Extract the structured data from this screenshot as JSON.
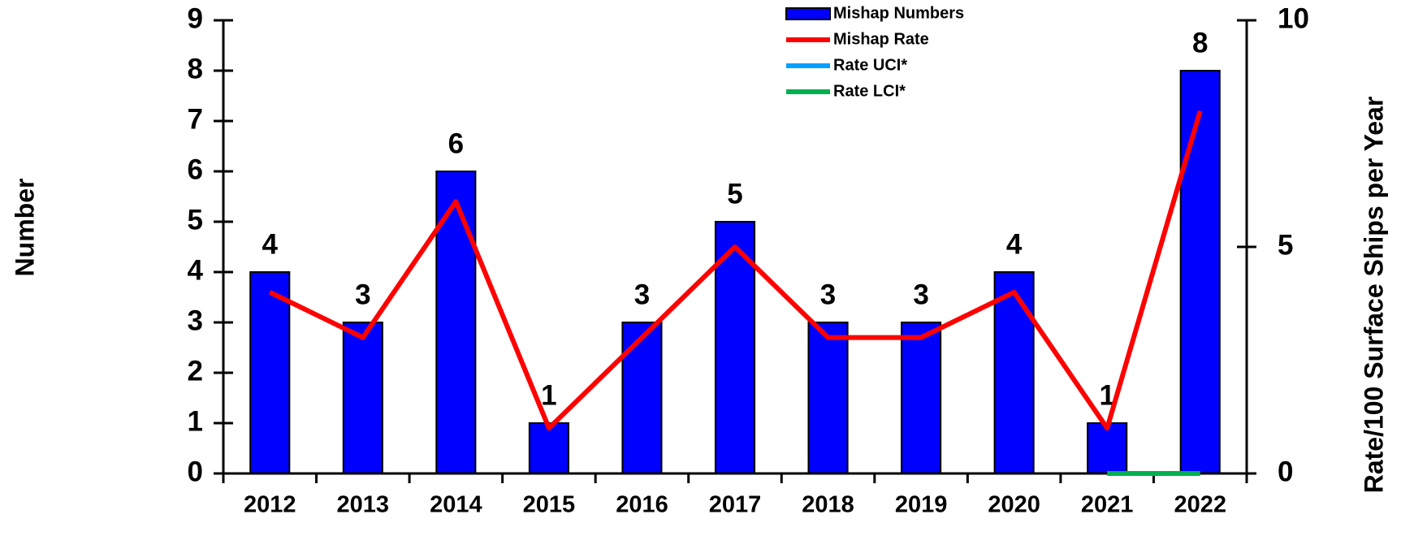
{
  "chart_data": {
    "type": "bar_line",
    "ylabel": "Number",
    "y2label": "Rate/100 Surface Ships per Year",
    "categories": [
      "2012",
      "2013",
      "2014",
      "2015",
      "2016",
      "2017",
      "2018",
      "2019",
      "2020",
      "2021",
      "2022"
    ],
    "series": [
      {
        "name": "Mishap Numbers",
        "type": "bar",
        "color": "#0000ff",
        "values": [
          4,
          3,
          6,
          1,
          3,
          5,
          3,
          3,
          4,
          1,
          8
        ]
      },
      {
        "name": "Mishap Rate",
        "type": "line",
        "axis": "y2",
        "color": "#ff0000",
        "values": [
          4.0,
          3.0,
          6.0,
          1.0,
          3.0,
          5.0,
          3.0,
          3.0,
          4.0,
          1.0,
          8.0
        ]
      },
      {
        "name": "Rate UCI*",
        "type": "line",
        "axis": "y2",
        "color": "#00a0ff",
        "values": [
          null,
          null,
          null,
          null,
          null,
          null,
          null,
          null,
          null,
          null,
          null
        ]
      },
      {
        "name": "Rate LCI*",
        "type": "line",
        "axis": "y2",
        "color": "#00b050",
        "values": [
          null,
          null,
          null,
          null,
          null,
          null,
          null,
          null,
          null,
          0,
          0
        ]
      }
    ],
    "ylim": [
      0,
      9
    ],
    "yticks": [
      0,
      1,
      2,
      3,
      4,
      5,
      6,
      7,
      8,
      9
    ],
    "y2lim": [
      0,
      10
    ],
    "y2ticks": [
      0,
      5,
      10
    ],
    "legend": "top"
  }
}
